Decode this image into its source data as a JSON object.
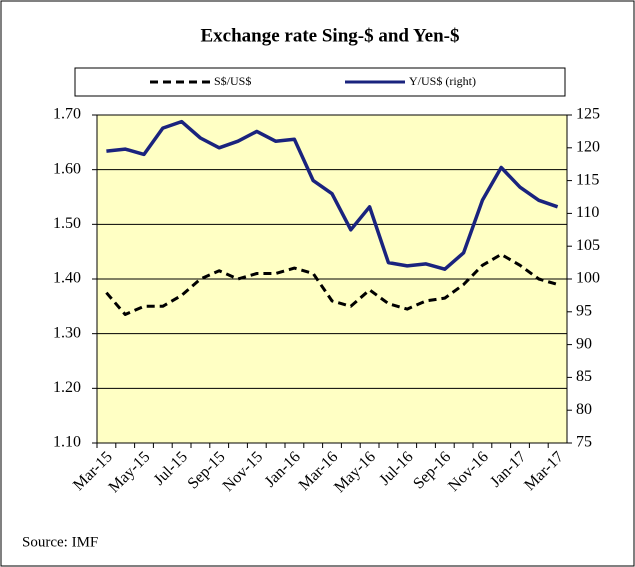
{
  "chart_data": {
    "type": "line",
    "title": "Exchange rate Sing-$ and Yen-$",
    "source": "Source: IMF",
    "categories": [
      "Mar-15",
      null,
      "May-15",
      null,
      "Jul-15",
      null,
      "Sep-15",
      null,
      "Nov-15",
      null,
      "Jan-16",
      null,
      "Mar-16",
      null,
      "May-16",
      null,
      "Jul-16",
      null,
      "Sep-16",
      null,
      "Nov-16",
      null,
      "Jan-17",
      null,
      "Mar-17"
    ],
    "series": [
      {
        "name": "S$/US$",
        "color": "#000000",
        "dashed": true,
        "values": [
          1.375,
          1.335,
          1.35,
          1.35,
          1.37,
          1.4,
          1.415,
          1.4,
          1.41,
          1.41,
          1.42,
          1.41,
          1.36,
          1.35,
          1.38,
          1.355,
          1.345,
          1.36,
          1.365,
          1.39,
          1.425,
          1.445,
          1.425,
          1.4,
          1.39
        ]
      },
      {
        "name": "Y/US$ (right)",
        "color": "#1a237e",
        "axis": "y2",
        "values": [
          119.5,
          119.8,
          119,
          123,
          124,
          121.5,
          120,
          121,
          122.5,
          121,
          121.3,
          115,
          113,
          107.5,
          111,
          102.5,
          102,
          102.3,
          101.5,
          104,
          112,
          117,
          114,
          112,
          111
        ]
      }
    ],
    "ylim": [
      1.1,
      1.7
    ],
    "yticks": [
      {
        "value": 1.1,
        "label": "1.10"
      },
      {
        "value": 1.2,
        "label": "1.20"
      },
      {
        "value": 1.3,
        "label": "1.30"
      },
      {
        "value": 1.4,
        "label": "1.40"
      },
      {
        "value": 1.5,
        "label": "1.50"
      },
      {
        "value": 1.6,
        "label": "1.60"
      },
      {
        "value": 1.7,
        "label": "1.70"
      }
    ],
    "y2lim": [
      75,
      125
    ],
    "y2ticks": [
      75,
      80,
      85,
      90,
      95,
      100,
      105,
      110,
      115,
      120,
      125
    ],
    "grid": true
  }
}
